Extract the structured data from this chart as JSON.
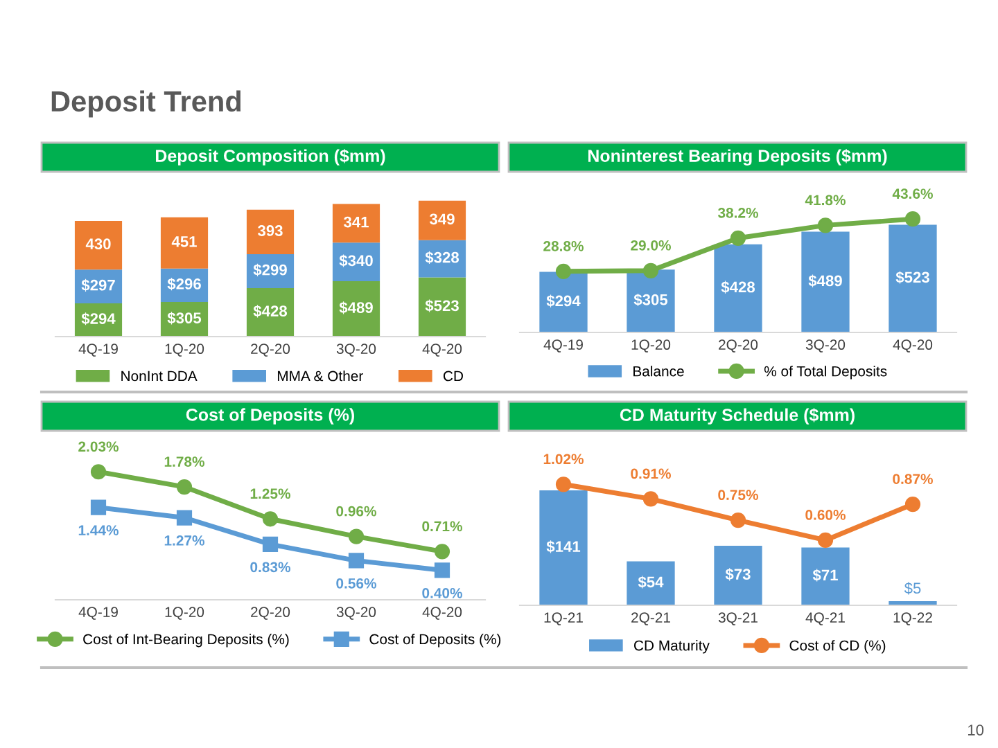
{
  "chart_data": [
    {
      "type": "bar",
      "title": "Deposit Composition ($mm)",
      "stacked": true,
      "legend": "bottom",
      "tick_labels": "x",
      "annotations": [
        "Deposit Trend",
        "10"
      ],
      "categories": [
        "4Q-19",
        "1Q-20",
        "2Q-20",
        "3Q-20",
        "4Q-20"
      ],
      "series": [
        {
          "name": "NonInt DDA",
          "color": "#70ad47",
          "values": [
            294,
            305,
            428,
            489,
            523
          ],
          "value_labels": [
            "$294",
            "$305",
            "$428",
            "$489",
            "$523"
          ]
        },
        {
          "name": "MMA & Other",
          "color": "#5b9bd5",
          "values": [
            297,
            296,
            299,
            340,
            328
          ],
          "value_labels": [
            "$297",
            "$296",
            "$299",
            "$340",
            "$328"
          ]
        },
        {
          "name": "CD",
          "color": "#ed7d31",
          "values": [
            430,
            451,
            393,
            341,
            349
          ],
          "value_labels": [
            "430",
            "451",
            "393",
            "341",
            "349"
          ]
        }
      ]
    },
    {
      "type": "bar",
      "title": "Noninterest Bearing Deposits ($mm)",
      "legend": "bottom",
      "tick_labels": "x",
      "categories": [
        "4Q-19",
        "1Q-20",
        "2Q-20",
        "3Q-20",
        "4Q-20"
      ],
      "series": [
        {
          "name": "Balance",
          "type": "bar",
          "color": "#5b9bd5",
          "values": [
            294,
            305,
            428,
            489,
            523
          ],
          "value_labels": [
            "$294",
            "$305",
            "$428",
            "$489",
            "$523"
          ]
        },
        {
          "name": "% of Total Deposits",
          "type": "line",
          "axis": "y2",
          "marker": "circle",
          "color": "#70ad47",
          "values": [
            28.8,
            29.0,
            38.2,
            41.8,
            43.6
          ],
          "value_labels": [
            "28.8%",
            "29.0%",
            "38.2%",
            "41.8%",
            "43.6%"
          ]
        }
      ]
    },
    {
      "type": "line",
      "title": "Cost of Deposits (%)",
      "legend": "bottom",
      "tick_labels": "x",
      "categories": [
        "4Q-19",
        "1Q-20",
        "2Q-20",
        "3Q-20",
        "4Q-20"
      ],
      "series": [
        {
          "name": "Cost of Int-Bearing Deposits (%)",
          "marker": "circle",
          "color": "#70ad47",
          "values": [
            2.03,
            1.78,
            1.25,
            0.96,
            0.71
          ],
          "value_labels": [
            "2.03%",
            "1.78%",
            "1.25%",
            "0.96%",
            "0.71%"
          ]
        },
        {
          "name": "Cost of Deposits (%)",
          "marker": "square",
          "color": "#5b9bd5",
          "values": [
            1.44,
            1.27,
            0.83,
            0.56,
            0.4
          ],
          "value_labels": [
            "1.44%",
            "1.27%",
            "0.83%",
            "0.56%",
            "0.40%"
          ]
        }
      ]
    },
    {
      "type": "bar",
      "title": "CD Maturity Schedule ($mm)",
      "legend": "bottom",
      "tick_labels": "x",
      "categories": [
        "1Q-21",
        "2Q-21",
        "3Q-21",
        "4Q-21",
        "1Q-22"
      ],
      "series": [
        {
          "name": "CD Maturity",
          "type": "bar",
          "color": "#5b9bd5",
          "values": [
            141,
            54,
            73,
            71,
            5
          ],
          "value_labels": [
            "$141",
            "$54",
            "$73",
            "$71",
            "$5"
          ]
        },
        {
          "name": "Cost of CD (%)",
          "type": "line",
          "axis": "y2",
          "marker": "circle",
          "color": "#ed7d31",
          "values": [
            1.02,
            0.91,
            0.75,
            0.6,
            0.87
          ],
          "value_labels": [
            "1.02%",
            "0.91%",
            "0.75%",
            "0.60%",
            "0.87%"
          ]
        }
      ]
    }
  ]
}
